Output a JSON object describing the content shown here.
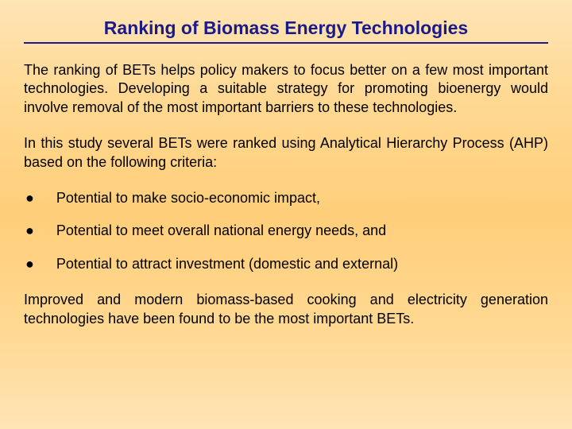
{
  "title": "Ranking of Biomass Energy Technologies",
  "paragraphs": {
    "p1": "The ranking of BETs helps policy makers to focus better on a few most important technologies. Developing a suitable strategy for promoting bioenergy would involve removal of the most important barriers to these technologies.",
    "p2": "In this study several BETs were ranked using Analytical Hierarchy Process (AHP) based on the following criteria:",
    "p3": "Improved and modern biomass-based cooking and electricity generation technologies have been found to be the most important BETs."
  },
  "bullets": {
    "b1": "Potential to make socio-economic impact,",
    "b2": "Potential to meet overall national energy needs, and",
    "b3": "Potential to attract investment (domestic and external)"
  },
  "styling": {
    "title_color": "#1a1a8a",
    "title_fontsize": 23,
    "body_color": "#000000",
    "body_fontsize": 18,
    "background_gradient_top": "#ffe4b5",
    "background_gradient_mid": "#ffce7a",
    "underline_color": "#1a1a8a"
  }
}
